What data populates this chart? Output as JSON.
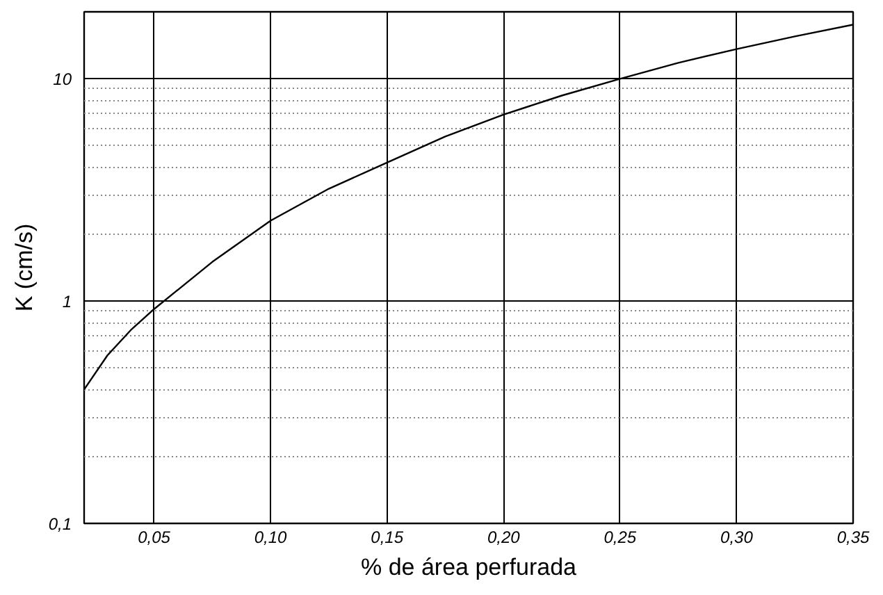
{
  "chart_data": {
    "type": "line",
    "xlabel": "% de área perfurada",
    "ylabel": "K (cm/s)",
    "x": [
      0.02,
      0.03,
      0.04,
      0.05,
      0.075,
      0.1,
      0.125,
      0.15,
      0.175,
      0.2,
      0.225,
      0.25,
      0.275,
      0.3,
      0.325,
      0.35
    ],
    "series": [
      {
        "color": "#000000",
        "values": [
          0.4,
          0.57,
          0.74,
          0.92,
          1.5,
          2.3,
          3.2,
          4.2,
          5.5,
          6.9,
          8.4,
          10,
          11.8,
          13.6,
          15.5,
          17.5
        ]
      }
    ],
    "xlim": [
      0.02,
      0.35
    ],
    "ylim": [
      0.1,
      20
    ],
    "xticks": [
      {
        "value": 0.05,
        "label": "0,05"
      },
      {
        "value": 0.1,
        "label": "0,10"
      },
      {
        "value": 0.15,
        "label": "0,15"
      },
      {
        "value": 0.2,
        "label": "0,20"
      },
      {
        "value": 0.25,
        "label": "0,25"
      },
      {
        "value": 0.3,
        "label": "0,30"
      },
      {
        "value": 0.35,
        "label": "0,35"
      }
    ],
    "yticks": [
      {
        "value": 0.1,
        "label": "0,1"
      },
      1,
      10
    ],
    "log": "y",
    "grid": true,
    "marker": "none",
    "line_style": "solid"
  }
}
